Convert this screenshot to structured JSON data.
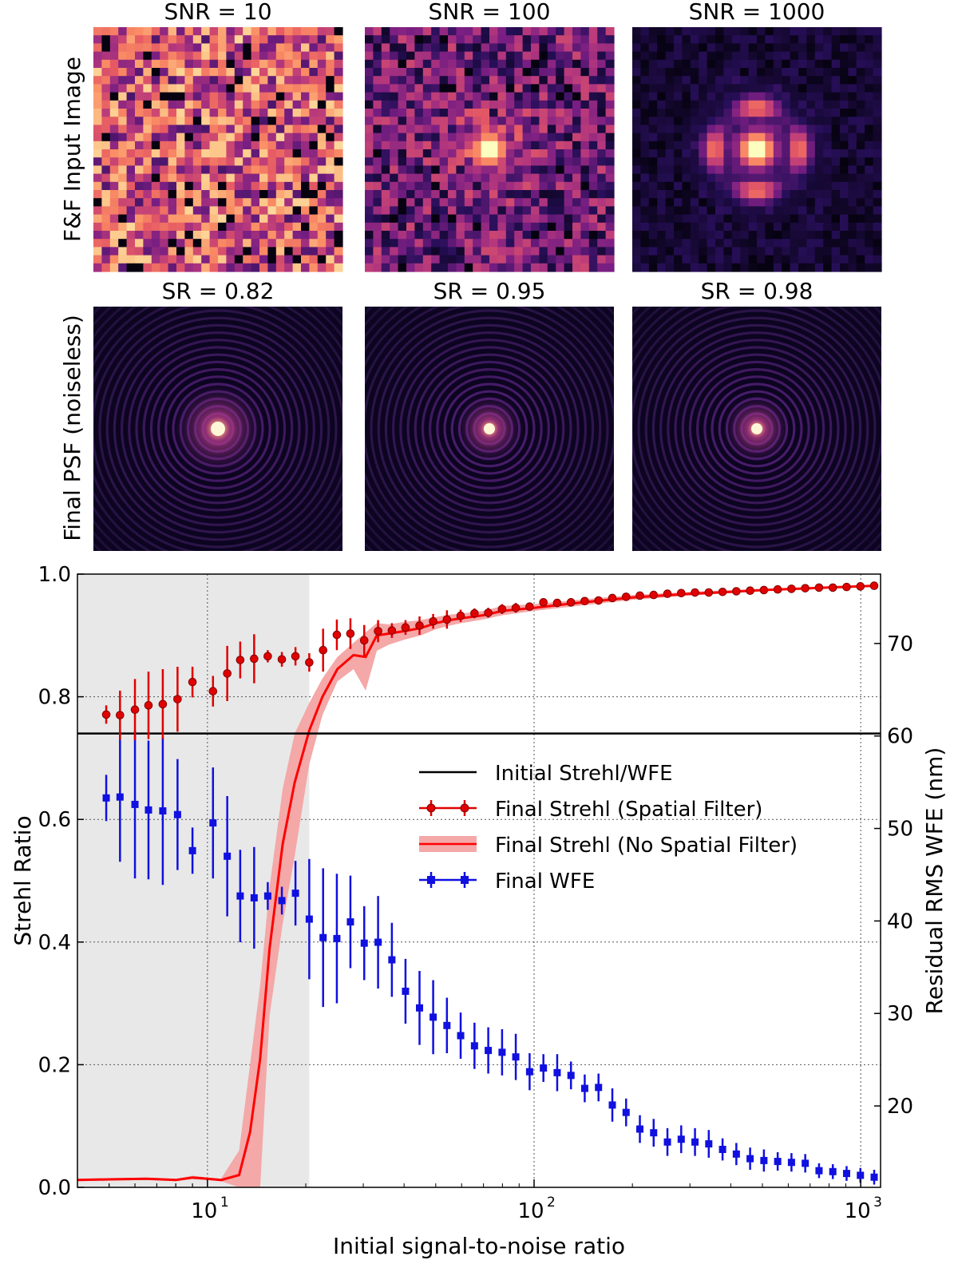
{
  "panels": {
    "row_labels": [
      "F&F Input Image",
      "Final PSF (noiseless)"
    ],
    "input_titles": [
      "SNR = 10",
      "SNR = 100",
      "SNR = 1000"
    ],
    "psf_titles": [
      "SR = 0.82",
      "SR = 0.95",
      "SR = 0.98"
    ],
    "input_snr": [
      10,
      100,
      1000
    ],
    "psf_strehl": [
      0.82,
      0.95,
      0.98
    ]
  },
  "chart_data": {
    "type": "line",
    "xscale": "log",
    "xlim": [
      4,
      1150
    ],
    "xlabel": "Initial signal-to-noise ratio",
    "xticks": [
      10,
      100,
      1000
    ],
    "xtick_labels": [
      "10",
      "10",
      "10"
    ],
    "xtick_exponents": [
      "1",
      "2",
      "3"
    ],
    "ylabel": "Strehl Ratio",
    "ylim": [
      0,
      1
    ],
    "yticks": [
      0,
      0.2,
      0.4,
      0.6,
      0.8,
      1.0
    ],
    "ytick_labels": [
      "0.0",
      "0.2",
      "0.4",
      "0.6",
      "0.8",
      "1.0"
    ],
    "y2label": "Residual RMS WFE (nm)",
    "y2lim": [
      11.2,
      77.5
    ],
    "y2ticks": [
      20,
      30,
      40,
      50,
      60,
      70
    ],
    "y2tick_labels": [
      "20",
      "30",
      "40",
      "50",
      "60",
      "70"
    ],
    "grid": true,
    "shaded_region": {
      "x": [
        4,
        20.5
      ],
      "color": "#e8e8e8"
    },
    "initial_strehl": 0.74,
    "legend_position": "center-right",
    "series": [
      {
        "name": "Final Strehl (Spatial Filter)",
        "axis": "left",
        "color": "#e00000",
        "marker": "circle",
        "x": [
          4.9,
          5.4,
          6.0,
          6.6,
          7.3,
          8.1,
          9.0,
          10.4,
          11.5,
          12.6,
          13.9,
          15.3,
          16.9,
          18.6,
          20.5,
          22.6,
          24.9,
          27.4,
          30.2,
          33.3,
          36.7,
          40.4,
          44.6,
          49.1,
          54.1,
          59.6,
          65.7,
          72.4,
          79.8,
          87.9,
          96.9,
          106.8,
          117.7,
          129.7,
          142.9,
          157.5,
          173.6,
          191.3,
          210.8,
          232.3,
          256.0,
          282.1,
          310.9,
          342.6,
          377.6,
          416.1,
          458.5,
          505.3,
          556.9,
          613.7,
          676.3,
          745.3,
          821.4,
          905.2,
          997.6,
          1099.4
        ],
        "values": [
          0.771,
          0.77,
          0.779,
          0.786,
          0.788,
          0.796,
          0.824,
          0.809,
          0.838,
          0.86,
          0.862,
          0.866,
          0.861,
          0.866,
          0.856,
          0.876,
          0.901,
          0.903,
          0.892,
          0.907,
          0.908,
          0.913,
          0.916,
          0.923,
          0.926,
          0.932,
          0.936,
          0.937,
          0.943,
          0.945,
          0.947,
          0.954,
          0.953,
          0.954,
          0.956,
          0.957,
          0.961,
          0.963,
          0.965,
          0.966,
          0.968,
          0.969,
          0.97,
          0.97,
          0.971,
          0.972,
          0.973,
          0.974,
          0.975,
          0.976,
          0.977,
          0.978,
          0.978,
          0.979,
          0.98,
          0.981
        ],
        "err": [
          0.015,
          0.04,
          0.05,
          0.055,
          0.057,
          0.053,
          0.025,
          0.025,
          0.045,
          0.03,
          0.04,
          0.01,
          0.012,
          0.015,
          0.015,
          0.035,
          0.025,
          0.025,
          0.025,
          0.018,
          0.012,
          0.012,
          0.015,
          0.012,
          0.015,
          0.01,
          0.008,
          0.008,
          0.008,
          0.008,
          0.006,
          0.005,
          0.004,
          0.004,
          0.004,
          0.004,
          0.004,
          0.004,
          0.003,
          0.003,
          0.003,
          0.003,
          0.003,
          0.003,
          0.003,
          0.003,
          0.003,
          0.003,
          0.003,
          0.003,
          0.003,
          0.003,
          0.003,
          0.003,
          0.003,
          0.003
        ]
      },
      {
        "name": "Final Strehl (No Spatial Filter)",
        "axis": "left",
        "color": "#ff0000",
        "band_color": "#f4a8a8",
        "x": [
          4,
          5,
          6.5,
          8,
          9,
          10,
          11,
          12.5,
          13.5,
          14.5,
          15.5,
          17,
          18.5,
          20.5,
          22.5,
          25,
          28,
          30.5,
          33,
          36,
          40,
          45,
          50,
          55,
          60,
          70,
          80,
          100,
          130,
          200,
          300,
          400,
          500,
          700,
          1100
        ],
        "values": [
          0.012,
          0.013,
          0.014,
          0.012,
          0.016,
          0.014,
          0.012,
          0.02,
          0.09,
          0.21,
          0.39,
          0.56,
          0.66,
          0.745,
          0.8,
          0.845,
          0.868,
          0.865,
          0.9,
          0.903,
          0.907,
          0.912,
          0.92,
          0.925,
          0.928,
          0.933,
          0.94,
          0.945,
          0.952,
          0.962,
          0.968,
          0.971,
          0.974,
          0.977,
          0.981
        ],
        "band_low": [
          0.01,
          0.011,
          0.012,
          0.01,
          0.013,
          0.012,
          0.01,
          0.0,
          0.0,
          0.0,
          0.28,
          0.43,
          0.54,
          0.69,
          0.77,
          0.825,
          0.845,
          0.81,
          0.875,
          0.885,
          0.893,
          0.9,
          0.91,
          0.916,
          0.92,
          0.926,
          0.933,
          0.94,
          0.947,
          0.958,
          0.965,
          0.969,
          0.972,
          0.975,
          0.979
        ],
        "band_high": [
          0.014,
          0.015,
          0.016,
          0.014,
          0.019,
          0.016,
          0.014,
          0.06,
          0.2,
          0.33,
          0.49,
          0.65,
          0.74,
          0.79,
          0.83,
          0.865,
          0.888,
          0.905,
          0.92,
          0.918,
          0.922,
          0.925,
          0.93,
          0.934,
          0.936,
          0.94,
          0.948,
          0.951,
          0.957,
          0.966,
          0.971,
          0.974,
          0.976,
          0.979,
          0.983
        ]
      },
      {
        "name": "Final WFE",
        "axis": "right",
        "color": "#1010e0",
        "marker": "square",
        "x": [
          4.9,
          5.4,
          6.0,
          6.6,
          7.3,
          8.1,
          9.0,
          10.4,
          11.5,
          12.6,
          13.9,
          15.3,
          16.9,
          18.6,
          20.5,
          22.6,
          24.9,
          27.4,
          30.2,
          33.3,
          36.7,
          40.4,
          44.6,
          49.1,
          54.1,
          59.6,
          65.7,
          72.4,
          79.8,
          87.9,
          96.9,
          106.8,
          117.7,
          129.7,
          142.9,
          157.5,
          173.6,
          191.3,
          210.8,
          232.3,
          256.0,
          282.1,
          310.9,
          342.6,
          377.6,
          416.1,
          458.5,
          505.3,
          556.9,
          613.7,
          676.3,
          745.3,
          821.4,
          905.2,
          997.6,
          1099.4
        ],
        "values": [
          53.3,
          53.4,
          52.6,
          52.0,
          51.9,
          51.5,
          47.6,
          50.6,
          47.0,
          42.7,
          42.5,
          42.7,
          42.2,
          43.0,
          40.2,
          38.2,
          38.1,
          39.9,
          37.6,
          37.7,
          35.8,
          32.4,
          30.6,
          29.6,
          28.7,
          27.6,
          26.5,
          26.0,
          25.8,
          25.3,
          23.7,
          24.1,
          23.6,
          23.3,
          21.9,
          22.0,
          20.1,
          19.3,
          17.5,
          17.1,
          16.1,
          16.4,
          16.1,
          15.9,
          15.3,
          14.8,
          14.3,
          14.1,
          14.0,
          13.9,
          13.8,
          13.0,
          12.9,
          12.7,
          12.5,
          12.3
        ],
        "err": [
          2.5,
          7.0,
          8.0,
          7.5,
          8.0,
          6.0,
          2.5,
          6.0,
          6.5,
          5.0,
          5.5,
          1.5,
          1.5,
          3.5,
          6.5,
          7.5,
          7.0,
          5.0,
          4.0,
          5.0,
          4.0,
          3.5,
          4.0,
          4.0,
          3.0,
          2.5,
          2.5,
          2.5,
          2.5,
          2.5,
          2.0,
          1.5,
          2.0,
          1.5,
          1.5,
          1.5,
          1.8,
          1.5,
          1.5,
          1.5,
          1.5,
          1.5,
          1.5,
          1.5,
          1.2,
          1.2,
          1.2,
          1.2,
          1.0,
          1.0,
          1.0,
          0.8,
          0.8,
          0.8,
          0.8,
          0.8
        ]
      }
    ],
    "legend": [
      {
        "label": "Initial Strehl/WFE",
        "color": "#000000",
        "style": "line"
      },
      {
        "label": "Final Strehl (Spatial Filter)",
        "color": "#e00000",
        "style": "errorbar-circle"
      },
      {
        "label": "Final Strehl (No Spatial Filter)",
        "color": "#ff0000",
        "style": "line-band"
      },
      {
        "label": "Final WFE",
        "color": "#1010e0",
        "style": "errorbar-square"
      }
    ]
  }
}
